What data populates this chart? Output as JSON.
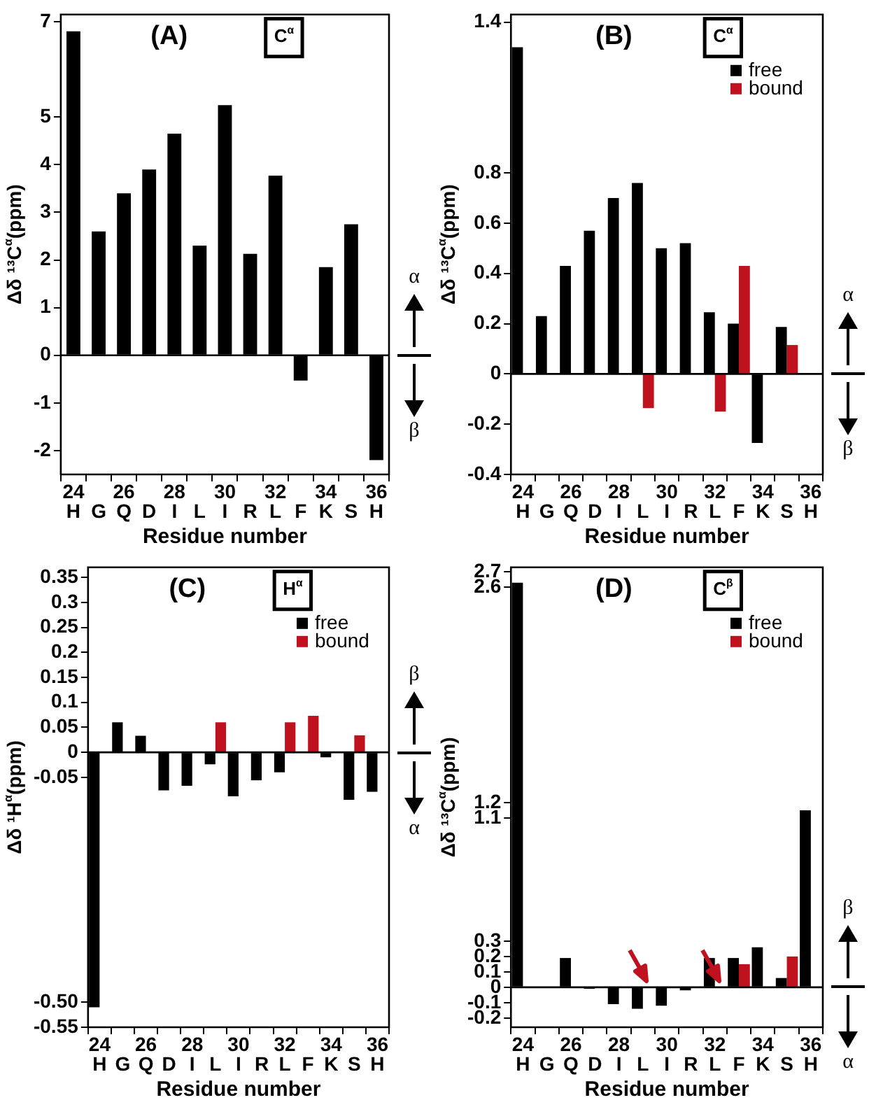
{
  "chart_data": [
    {
      "type": "bar",
      "title": "(A)",
      "xlabel": "Residue number",
      "ylabel": "Δδ ¹³C$^{α}$(ppm)",
      "categories": [
        "24\nH",
        "G",
        "26\nQ",
        "D",
        "28\nI",
        "L",
        "30\nI",
        "R",
        "32\nL",
        "F",
        "34\nK",
        "S",
        "36\nH"
      ],
      "values": [
        6.8,
        2.6,
        3.4,
        3.9,
        4.65,
        2.3,
        5.25,
        2.13,
        3.77,
        -0.53,
        1.85,
        2.75,
        -2.2
      ],
      "color": "#000000",
      "ylim": [
        -2.5,
        7.15
      ],
      "yticks": [
        -2,
        -1,
        0,
        1,
        2,
        3,
        4,
        5,
        7
      ],
      "annotations": [
        "C$^{α}$",
        "α",
        "β"
      ]
    },
    {
      "type": "bar",
      "title": "(B)",
      "xlabel": "Residue number",
      "ylabel": "Δδ ¹³C$^{α}$(ppm)",
      "categories": [
        "24\nH",
        "G",
        "26\nQ",
        "D",
        "28\nI",
        "L",
        "30\nI",
        "R",
        "32\nL",
        "F",
        "34\nK",
        "S",
        "36\nH"
      ],
      "series": [
        {
          "name": "free",
          "color": "#000000",
          "values": [
            1.3,
            0.23,
            0.43,
            0.57,
            0.7,
            0.76,
            0.5,
            0.52,
            0.245,
            0.2,
            -0.275,
            0.187,
            null
          ]
        },
        {
          "name": "bound",
          "color": "#c0111f",
          "values": [
            null,
            null,
            null,
            null,
            null,
            -0.136,
            null,
            null,
            -0.15,
            0.43,
            null,
            0.115,
            null
          ]
        }
      ],
      "ylim": [
        -0.4,
        1.43
      ],
      "yticks": [
        -0.4,
        -0.2,
        0,
        0.2,
        0.4,
        0.6,
        0.8,
        1.4
      ],
      "legend": "top right",
      "annotations": [
        "C$^{α}$",
        "α",
        "β"
      ]
    },
    {
      "type": "bar",
      "title": "(C)",
      "xlabel": "Residue number",
      "ylabel": "Δδ ¹H$^{α}$(ppm)",
      "categories": [
        "24\nH",
        "G",
        "26\nQ",
        "D",
        "28\nI",
        "L",
        "30\nI",
        "R",
        "32\nL",
        "F",
        "34\nK",
        "S",
        "36\nH"
      ],
      "series": [
        {
          "name": "free",
          "color": "#000000",
          "values": [
            -0.51,
            0.06,
            0.033,
            -0.076,
            -0.067,
            -0.024,
            -0.088,
            -0.056,
            -0.04,
            null,
            -0.01,
            -0.095,
            -0.079
          ]
        },
        {
          "name": "bound",
          "color": "#c0111f",
          "values": [
            null,
            null,
            null,
            null,
            null,
            0.06,
            null,
            null,
            0.06,
            0.073,
            null,
            0.034,
            null
          ]
        }
      ],
      "ylim": [
        -0.55,
        0.37
      ],
      "yticks": [
        {
          "value": -0.55,
          "label": "-0.55"
        },
        {
          "value": -0.5,
          "label": "-0.50"
        },
        -0.05,
        0,
        0.05,
        0.1,
        0.15,
        0.2,
        0.25,
        0.3,
        0.35
      ],
      "legend": "top right",
      "annotations": [
        "H$^{α}$",
        "β",
        "α"
      ]
    },
    {
      "type": "bar",
      "title": "(D)",
      "xlabel": "Residue number",
      "ylabel": "Δδ ¹³C$^{α}$(ppm)",
      "categories": [
        "24\nH",
        "G",
        "26\nQ",
        "D",
        "28\nI",
        "L",
        "30\nI",
        "R",
        "32\nL",
        "F",
        "34\nK",
        "S",
        "36\nH"
      ],
      "series": [
        {
          "name": "free",
          "color": "#000000",
          "values": [
            2.63,
            null,
            0.19,
            -0.01,
            -0.11,
            -0.14,
            -0.12,
            -0.02,
            0.19,
            0.19,
            0.26,
            0.06,
            1.15
          ]
        },
        {
          "name": "bound",
          "color": "#c0111f",
          "values": [
            null,
            null,
            null,
            null,
            null,
            0,
            null,
            null,
            0,
            0.15,
            null,
            0.2,
            null
          ]
        }
      ],
      "ylim": [
        -0.26,
        2.73
      ],
      "yticks": [
        -0.2,
        -0.1,
        0,
        0.1,
        0.2,
        0.3,
        1.1,
        1.2,
        2.6,
        2.7
      ],
      "legend": "top right",
      "annotations": [
        "C$^{β}$",
        "β",
        "α"
      ]
    }
  ]
}
